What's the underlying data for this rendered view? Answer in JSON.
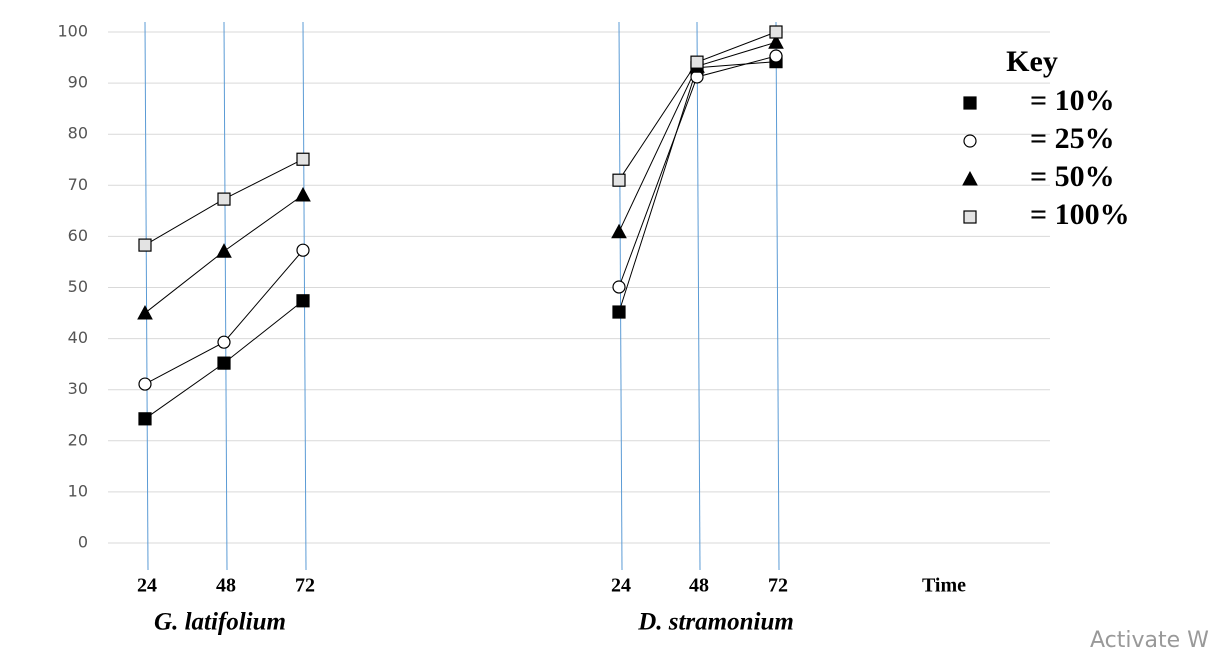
{
  "chart_data": {
    "type": "line",
    "categories": [
      "24",
      "48",
      "72"
    ],
    "groups": [
      "G. latifolium",
      "D. stramonium"
    ],
    "series": [
      {
        "name": "= 10%",
        "marker": "square",
        "color": "#000000",
        "values": [
          [
            24.3,
            35.2,
            47.4
          ],
          [
            45.2,
            93,
            94.2
          ]
        ]
      },
      {
        "name": "= 25%",
        "marker": "circle",
        "color": "#ffffff",
        "values": [
          [
            31.1,
            39.3,
            57.3
          ],
          [
            50.1,
            91.2,
            95.3
          ]
        ]
      },
      {
        "name": "= 50%",
        "marker": "triangle",
        "color": "#000000",
        "values": [
          [
            45.0,
            57.1,
            68.1
          ],
          [
            60.9,
            93.3,
            98.0
          ]
        ]
      },
      {
        "name": "= 100%",
        "marker": "square",
        "color": "#e3e3e3",
        "values": [
          [
            58.3,
            67.3,
            75.1
          ],
          [
            71.0,
            94.1,
            100
          ]
        ]
      }
    ],
    "ylim": [
      0,
      100
    ],
    "yticks": [
      0,
      10,
      20,
      30,
      40,
      50,
      60,
      70,
      80,
      90,
      100
    ],
    "grid": true,
    "x_label": "Time",
    "legend_title": "Key",
    "legend_position": "upper right"
  },
  "watermark": "Activate W"
}
